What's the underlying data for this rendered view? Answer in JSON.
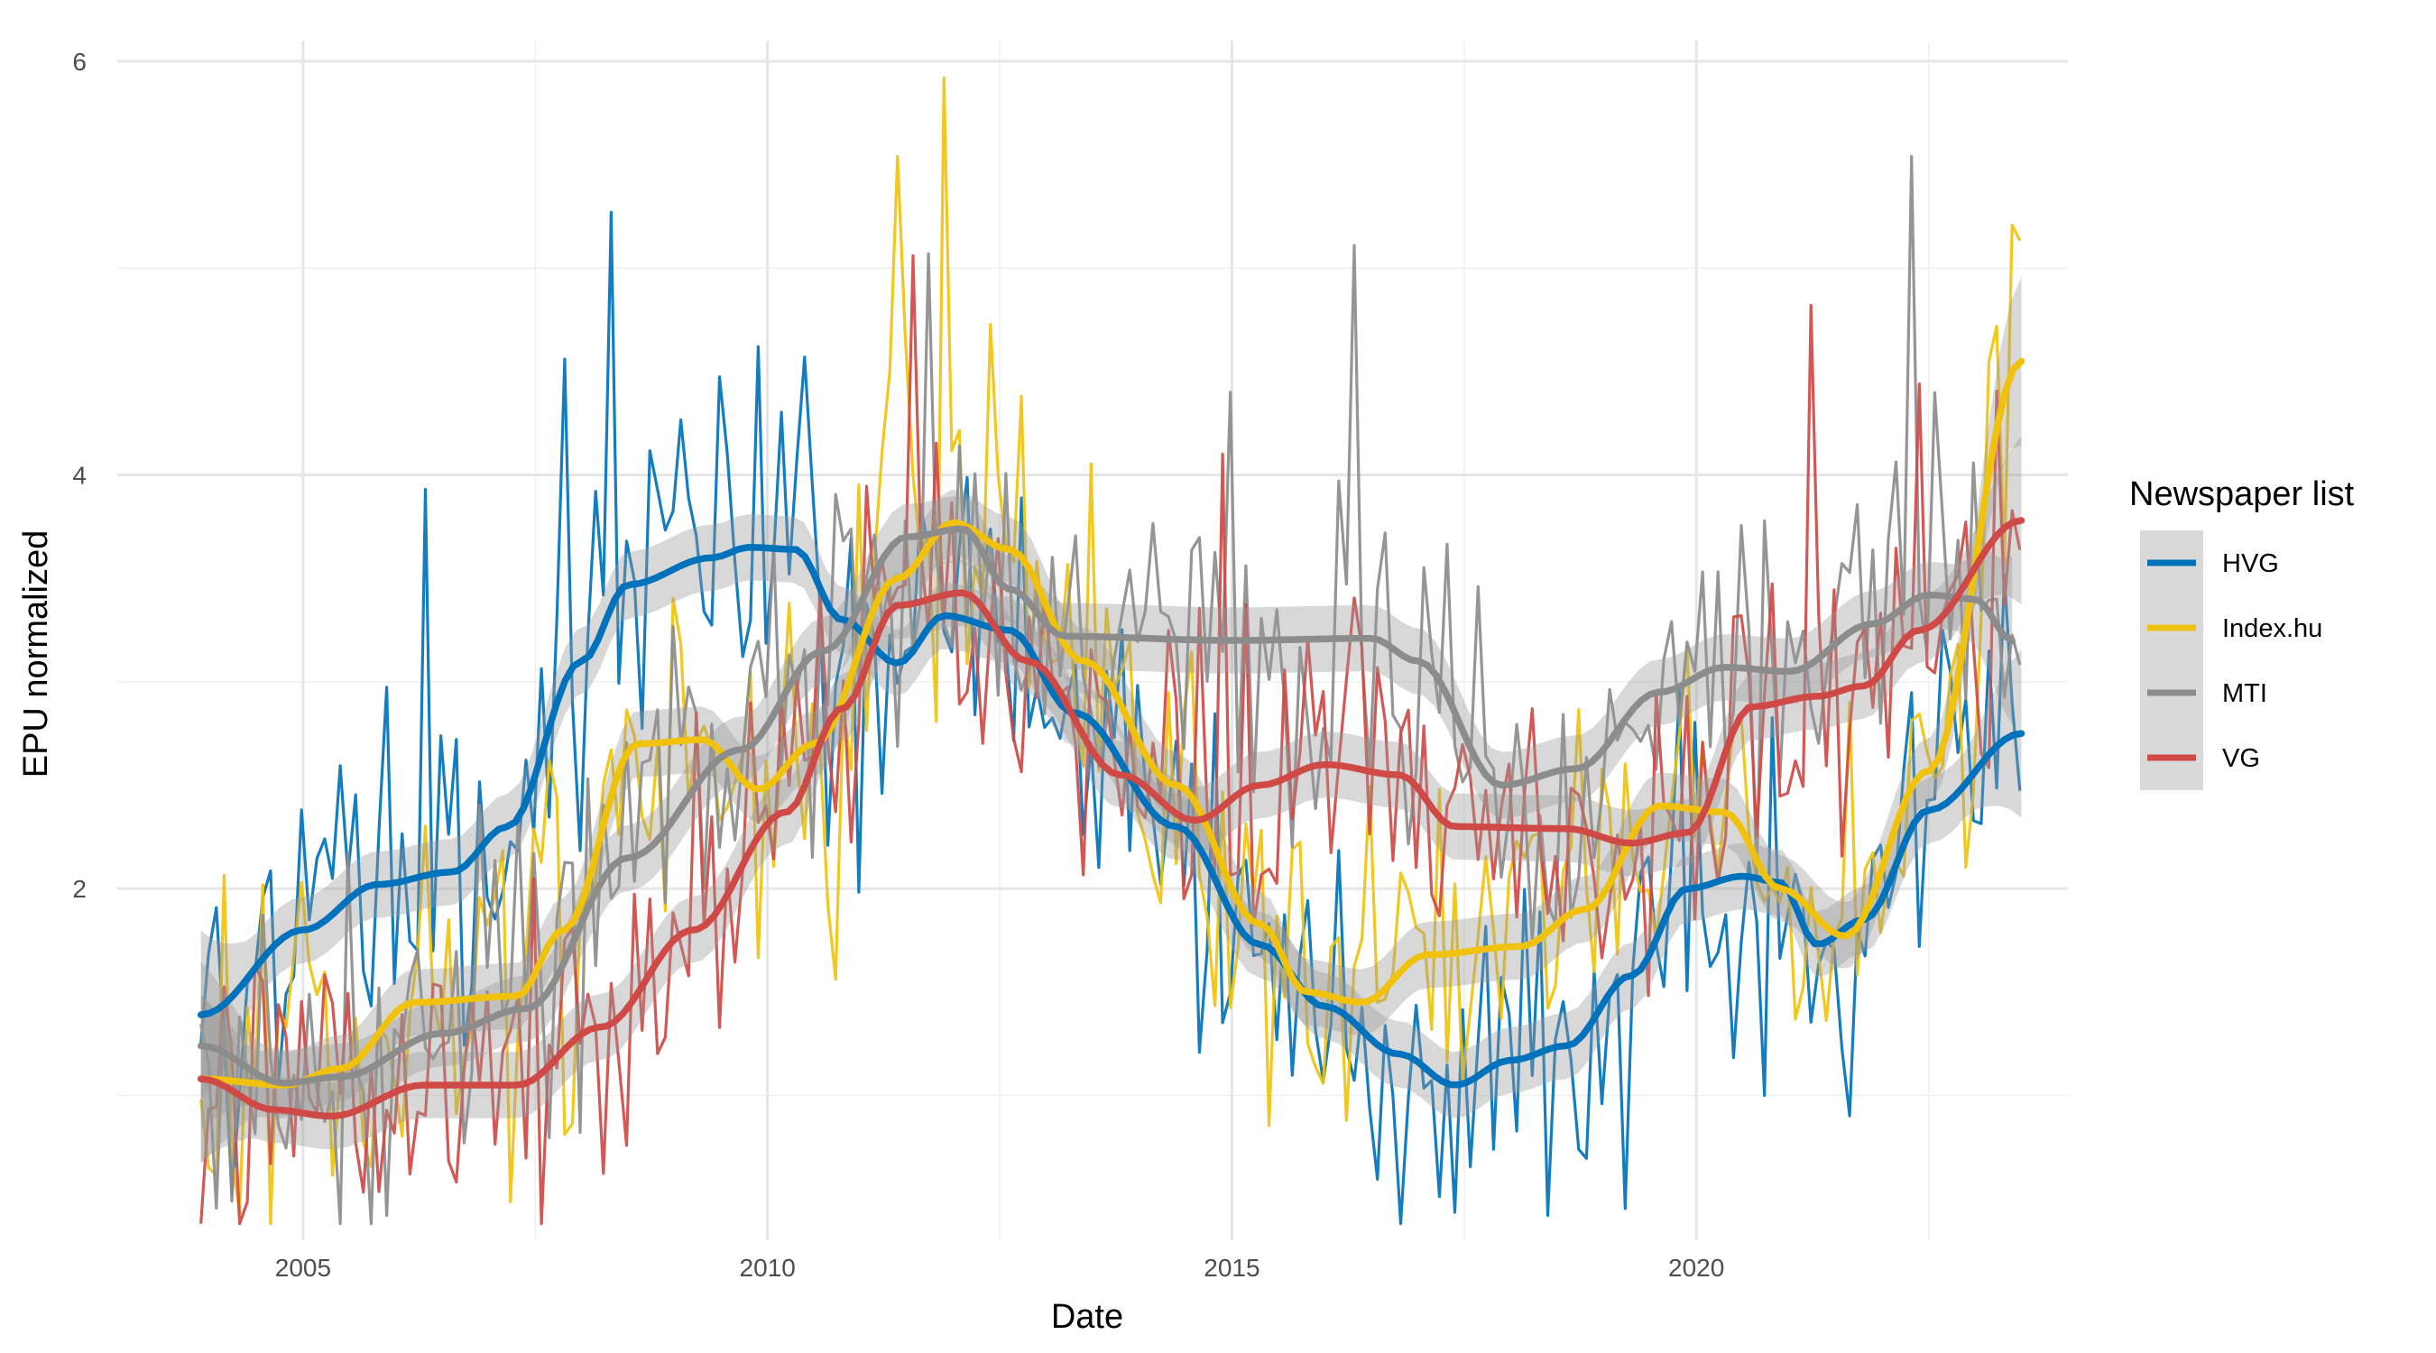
{
  "chart_data": {
    "type": "line",
    "title": "",
    "xlabel": "Date",
    "ylabel": "EPU normalized",
    "xlim": [
      2003.0,
      2024.0
    ],
    "ylim": [
      0.3,
      6.1
    ],
    "x_ticks": [
      2005,
      2010,
      2015,
      2020
    ],
    "x_tick_labels": [
      "2005",
      "2010",
      "2015",
      "2020"
    ],
    "y_ticks": [
      2,
      4,
      6
    ],
    "y_tick_labels": [
      "2",
      "4",
      "6"
    ],
    "grid": true,
    "legend": {
      "title": "Newspaper list",
      "position": "right"
    },
    "raw_start": 2003.9,
    "raw_end": 2023.5,
    "series": [
      {
        "name": "HVG",
        "color": "#0072bb",
        "raw_amplitude": 0.75,
        "raw_peaks": [
          [
            2006.3,
            3.93
          ],
          [
            2007.8,
            4.56
          ],
          [
            2008.3,
            5.27
          ],
          [
            2009.9,
            4.62
          ],
          [
            2010.4,
            4.57
          ],
          [
            2018.4,
            0.42
          ]
        ],
        "trend": [
          [
            2003.9,
            1.39
          ],
          [
            2005.0,
            1.8
          ],
          [
            2005.8,
            2.02
          ],
          [
            2006.6,
            2.08
          ],
          [
            2007.2,
            2.3
          ],
          [
            2008.0,
            3.1
          ],
          [
            2008.5,
            3.47
          ],
          [
            2009.4,
            3.6
          ],
          [
            2009.8,
            3.65
          ],
          [
            2010.3,
            3.64
          ],
          [
            2010.8,
            3.3
          ],
          [
            2011.4,
            3.09
          ],
          [
            2011.9,
            3.32
          ],
          [
            2012.6,
            3.25
          ],
          [
            2013.3,
            2.85
          ],
          [
            2014.4,
            2.3
          ],
          [
            2015.3,
            1.73
          ],
          [
            2016.0,
            1.43
          ],
          [
            2016.8,
            1.2
          ],
          [
            2017.4,
            1.05
          ],
          [
            2018.0,
            1.17
          ],
          [
            2018.6,
            1.24
          ],
          [
            2019.3,
            1.58
          ],
          [
            2019.9,
            2.0
          ],
          [
            2020.5,
            2.06
          ],
          [
            2020.9,
            2.03
          ],
          [
            2021.3,
            1.73
          ],
          [
            2021.8,
            1.85
          ],
          [
            2022.5,
            2.38
          ],
          [
            2023.5,
            2.75
          ]
        ],
        "ribbon": true
      },
      {
        "name": "Index.hu",
        "color": "#f0c20d",
        "raw_amplitude": 0.8,
        "raw_peaks": [
          [
            2004.3,
            0.43
          ],
          [
            2011.4,
            5.54
          ],
          [
            2011.9,
            5.92
          ],
          [
            2012.7,
            4.38
          ],
          [
            2023.2,
            4.72
          ]
        ],
        "trend": [
          [
            2003.9,
            1.08
          ],
          [
            2004.8,
            1.05
          ],
          [
            2005.4,
            1.13
          ],
          [
            2006.2,
            1.45
          ],
          [
            2007.3,
            1.48
          ],
          [
            2007.8,
            1.8
          ],
          [
            2008.6,
            2.7
          ],
          [
            2009.3,
            2.72
          ],
          [
            2009.9,
            2.48
          ],
          [
            2010.5,
            2.7
          ],
          [
            2011.4,
            3.5
          ],
          [
            2012.0,
            3.77
          ],
          [
            2012.6,
            3.64
          ],
          [
            2013.4,
            3.1
          ],
          [
            2014.4,
            2.5
          ],
          [
            2015.3,
            1.83
          ],
          [
            2015.8,
            1.5
          ],
          [
            2016.4,
            1.45
          ],
          [
            2017.1,
            1.68
          ],
          [
            2018.1,
            1.72
          ],
          [
            2018.8,
            1.9
          ],
          [
            2019.6,
            2.4
          ],
          [
            2020.3,
            2.37
          ],
          [
            2020.9,
            2.0
          ],
          [
            2021.6,
            1.77
          ],
          [
            2022.5,
            2.57
          ],
          [
            2023.5,
            4.55
          ]
        ],
        "ribbon": true
      },
      {
        "name": "MTI",
        "color": "#8c8c8c",
        "raw_amplitude": 0.72,
        "raw_peaks": [
          [
            2011.7,
            5.07
          ],
          [
            2016.3,
            5.11
          ],
          [
            2015.0,
            4.4
          ],
          [
            2022.3,
            5.54
          ]
        ],
        "trend": [
          [
            2003.9,
            1.24
          ],
          [
            2004.8,
            1.06
          ],
          [
            2005.4,
            1.09
          ],
          [
            2006.5,
            1.3
          ],
          [
            2007.4,
            1.42
          ],
          [
            2008.5,
            2.15
          ],
          [
            2009.7,
            2.67
          ],
          [
            2010.6,
            3.15
          ],
          [
            2011.5,
            3.7
          ],
          [
            2012.1,
            3.74
          ],
          [
            2012.6,
            3.45
          ],
          [
            2013.2,
            3.22
          ],
          [
            2015.0,
            3.2
          ],
          [
            2016.5,
            3.21
          ],
          [
            2017.0,
            3.1
          ],
          [
            2017.9,
            2.5
          ],
          [
            2018.7,
            2.58
          ],
          [
            2019.6,
            2.95
          ],
          [
            2020.3,
            3.07
          ],
          [
            2021.0,
            3.05
          ],
          [
            2021.9,
            3.28
          ],
          [
            2022.5,
            3.42
          ],
          [
            2023.0,
            3.4
          ],
          [
            2023.4,
            3.2
          ]
        ],
        "ribbon": true
      },
      {
        "name": "VG",
        "color": "#cf4a46",
        "raw_amplitude": 0.7,
        "raw_peaks": [
          [
            2011.6,
            5.06
          ],
          [
            2014.9,
            4.1
          ],
          [
            2021.2,
            4.82
          ],
          [
            2022.4,
            4.44
          ]
        ],
        "trend": [
          [
            2003.9,
            1.08
          ],
          [
            2004.7,
            0.93
          ],
          [
            2005.3,
            0.9
          ],
          [
            2006.3,
            1.05
          ],
          [
            2007.3,
            1.05
          ],
          [
            2008.2,
            1.33
          ],
          [
            2009.2,
            1.8
          ],
          [
            2010.2,
            2.37
          ],
          [
            2010.8,
            2.87
          ],
          [
            2011.4,
            3.37
          ],
          [
            2012.1,
            3.43
          ],
          [
            2012.8,
            3.1
          ],
          [
            2013.8,
            2.55
          ],
          [
            2014.6,
            2.33
          ],
          [
            2015.3,
            2.5
          ],
          [
            2016.0,
            2.6
          ],
          [
            2016.8,
            2.55
          ],
          [
            2017.4,
            2.3
          ],
          [
            2018.6,
            2.29
          ],
          [
            2019.3,
            2.22
          ],
          [
            2019.9,
            2.27
          ],
          [
            2020.6,
            2.88
          ],
          [
            2021.3,
            2.93
          ],
          [
            2021.8,
            2.98
          ],
          [
            2022.4,
            3.25
          ],
          [
            2023.5,
            3.78
          ]
        ],
        "ribbon": true
      }
    ]
  }
}
